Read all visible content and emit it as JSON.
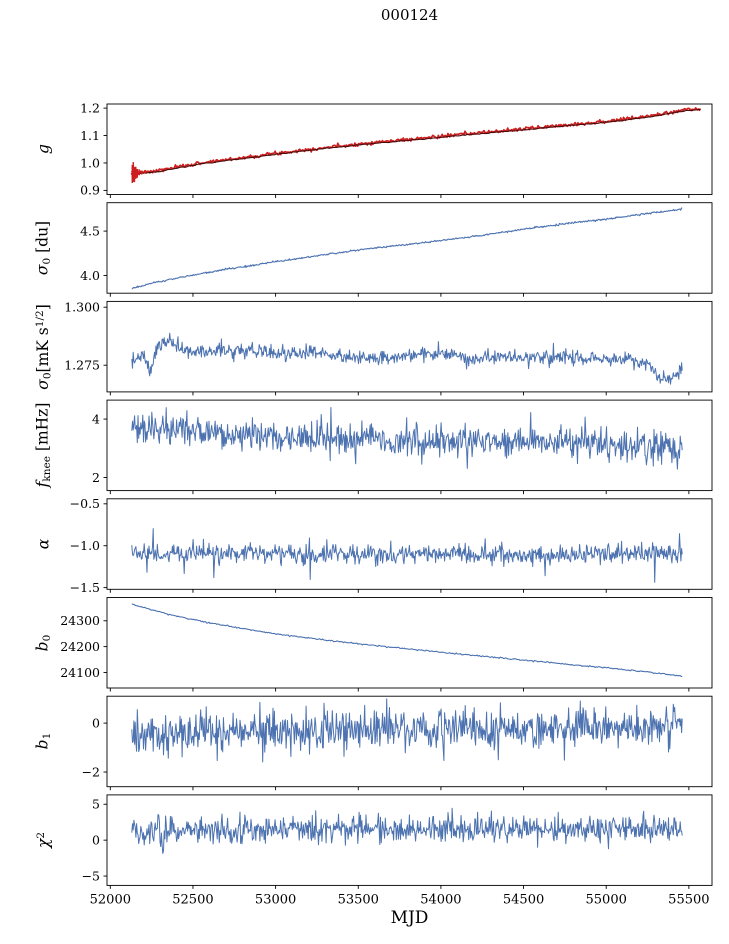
{
  "title": "000124",
  "chart_data": {
    "type": "line",
    "title": "000124",
    "xlabel": "MJD",
    "legend": "none",
    "grid": false,
    "x_axis": {
      "range": [
        51980,
        55640
      ],
      "data_range": [
        52130,
        55460
      ],
      "ticks": [
        52000,
        52500,
        53000,
        53500,
        54000,
        54500,
        55000,
        55500
      ],
      "tick_labels": [
        "52000",
        "52500",
        "53000",
        "53500",
        "54000",
        "54500",
        "55000",
        "55500"
      ]
    },
    "colors": {
      "blue": "#4c72b0",
      "red": "#cc1f1f",
      "dark": "#4a0c0c",
      "axis": "#000000",
      "background": "#ffffff"
    },
    "panels": [
      {
        "id": "g",
        "ylabel_text": "g",
        "ylabel_tokens": [
          {
            "t": "g",
            "i": 1
          }
        ],
        "ylim": [
          0.885,
          1.215
        ],
        "yticks": [
          0.9,
          1.0,
          1.1,
          1.2
        ],
        "ytick_labels": [
          "0.9",
          "1.0",
          "1.1",
          "1.2"
        ],
        "series": [
          {
            "name": "gain",
            "color": "red",
            "width": 1.7,
            "n": 600,
            "seed": 7,
            "noise_sigma": 0.0032,
            "x_end": 55570,
            "keypoints": [
              [
                52130,
                0.962
              ],
              [
                52250,
                0.968
              ],
              [
                52400,
                0.984
              ],
              [
                52550,
                1.0
              ],
              [
                52700,
                1.012
              ],
              [
                52850,
                1.023
              ],
              [
                53000,
                1.035
              ],
              [
                53150,
                1.046
              ],
              [
                53300,
                1.056
              ],
              [
                53450,
                1.066
              ],
              [
                53600,
                1.075
              ],
              [
                53750,
                1.083
              ],
              [
                53900,
                1.091
              ],
              [
                54050,
                1.1
              ],
              [
                54200,
                1.108
              ],
              [
                54350,
                1.116
              ],
              [
                54500,
                1.124
              ],
              [
                54650,
                1.133
              ],
              [
                54800,
                1.141
              ],
              [
                54950,
                1.149
              ],
              [
                55080,
                1.157
              ],
              [
                55200,
                1.166
              ],
              [
                55300,
                1.175
              ],
              [
                55400,
                1.186
              ],
              [
                55480,
                1.194
              ],
              [
                55570,
                1.198
              ]
            ]
          },
          {
            "name": "gain-smooth",
            "color": "dark",
            "width": 1.1,
            "n": 240,
            "seed": 8,
            "noise_sigma": 0.0008,
            "offset": -0.0035,
            "x_end": 55570,
            "keypoints": [
              [
                52130,
                0.962
              ],
              [
                52250,
                0.968
              ],
              [
                52400,
                0.984
              ],
              [
                52550,
                1.0
              ],
              [
                52700,
                1.012
              ],
              [
                52850,
                1.023
              ],
              [
                53000,
                1.035
              ],
              [
                53150,
                1.046
              ],
              [
                53300,
                1.056
              ],
              [
                53450,
                1.066
              ],
              [
                53600,
                1.075
              ],
              [
                53750,
                1.083
              ],
              [
                53900,
                1.091
              ],
              [
                54050,
                1.1
              ],
              [
                54200,
                1.108
              ],
              [
                54350,
                1.116
              ],
              [
                54500,
                1.124
              ],
              [
                54650,
                1.133
              ],
              [
                54800,
                1.141
              ],
              [
                54950,
                1.149
              ],
              [
                55080,
                1.157
              ],
              [
                55200,
                1.166
              ],
              [
                55300,
                1.175
              ],
              [
                55400,
                1.186
              ],
              [
                55480,
                1.194
              ],
              [
                55570,
                1.198
              ]
            ]
          }
        ],
        "errorbars": {
          "color": "red",
          "points": [
            [
              52133,
              0.96,
              0.033
            ],
            [
              52139,
              0.967,
              0.036
            ],
            [
              52146,
              0.958,
              0.028
            ],
            [
              52154,
              0.964,
              0.022
            ],
            [
              52163,
              0.962,
              0.016
            ],
            [
              52174,
              0.966,
              0.011
            ],
            [
              52190,
              0.965,
              0.007
            ],
            [
              52210,
              0.967,
              0.005
            ]
          ]
        }
      },
      {
        "id": "sigma0-du",
        "ylabel_text": "sigma_0 [du]",
        "ylabel_tokens": [
          {
            "t": "σ",
            "i": 1
          },
          {
            "t": "0",
            "sub": 1
          },
          {
            "t": " [du]"
          }
        ],
        "ylim": [
          3.8,
          4.82
        ],
        "yticks": [
          4.0,
          4.5
        ],
        "ytick_labels": [
          "4.0",
          "4.5"
        ],
        "series": [
          {
            "name": "sigma0-du",
            "color": "blue",
            "width": 1.1,
            "n": 700,
            "seed": 21,
            "noise_sigma": 0.005,
            "keypoints": [
              [
                52130,
                3.855
              ],
              [
                52250,
                3.91
              ],
              [
                52400,
                3.97
              ],
              [
                52550,
                4.02
              ],
              [
                52700,
                4.07
              ],
              [
                52850,
                4.11
              ],
              [
                53000,
                4.155
              ],
              [
                53150,
                4.195
              ],
              [
                53300,
                4.235
              ],
              [
                53450,
                4.275
              ],
              [
                53600,
                4.31
              ],
              [
                53750,
                4.34
              ],
              [
                53900,
                4.37
              ],
              [
                54050,
                4.405
              ],
              [
                54200,
                4.44
              ],
              [
                54350,
                4.48
              ],
              [
                54500,
                4.52
              ],
              [
                54650,
                4.56
              ],
              [
                54800,
                4.595
              ],
              [
                54950,
                4.625
              ],
              [
                55100,
                4.66
              ],
              [
                55250,
                4.7
              ],
              [
                55350,
                4.72
              ],
              [
                55460,
                4.75
              ]
            ]
          }
        ]
      },
      {
        "id": "sigma0-mk",
        "ylabel_text": "sigma_0 [mK s^1/2]",
        "ylabel_tokens": [
          {
            "t": "σ",
            "i": 1
          },
          {
            "t": "0",
            "sub": 1
          },
          {
            "t": "[mK s"
          },
          {
            "t": "1/2",
            "sup": 1
          },
          {
            "t": "]"
          }
        ],
        "ylim": [
          1.2635,
          1.3025
        ],
        "yticks": [
          1.275,
          1.3
        ],
        "ytick_labels": [
          "1.275",
          "1.300"
        ],
        "series": [
          {
            "name": "sigma0-mk",
            "color": "blue",
            "width": 1.0,
            "n": 800,
            "seed": 31,
            "noise_sigma": 0.0016,
            "spike_prob": 0.004,
            "spike_scale": 0.004,
            "keypoints": [
              [
                52130,
                1.277
              ],
              [
                52200,
                1.279
              ],
              [
                52240,
                1.272
              ],
              [
                52290,
                1.2835
              ],
              [
                52360,
                1.2855
              ],
              [
                52450,
                1.2805
              ],
              [
                52600,
                1.281
              ],
              [
                52800,
                1.282
              ],
              [
                53000,
                1.28
              ],
              [
                53200,
                1.281
              ],
              [
                53400,
                1.279
              ],
              [
                53600,
                1.278
              ],
              [
                53800,
                1.279
              ],
              [
                54000,
                1.28
              ],
              [
                54200,
                1.278
              ],
              [
                54400,
                1.279
              ],
              [
                54600,
                1.278
              ],
              [
                54800,
                1.2785
              ],
              [
                55000,
                1.277
              ],
              [
                55120,
                1.278
              ],
              [
                55250,
                1.276
              ],
              [
                55330,
                1.2685
              ],
              [
                55400,
                1.27
              ],
              [
                55460,
                1.273
              ]
            ]
          }
        ]
      },
      {
        "id": "fknee",
        "ylabel_text": "f_knee [mHz]",
        "ylabel_tokens": [
          {
            "t": "f",
            "i": 1
          },
          {
            "t": "knee",
            "sub": 1
          },
          {
            "t": " [mHz]"
          }
        ],
        "ylim": [
          1.55,
          4.65
        ],
        "yticks": [
          2,
          4
        ],
        "ytick_labels": [
          "2",
          "4"
        ],
        "series": [
          {
            "name": "fknee",
            "color": "blue",
            "width": 1.0,
            "n": 800,
            "seed": 41,
            "noise_sigma": 0.27,
            "spike_prob": 0.015,
            "spike_scale": 0.7,
            "keypoints": [
              [
                52130,
                3.75
              ],
              [
                52250,
                3.62
              ],
              [
                52400,
                3.66
              ],
              [
                52550,
                3.52
              ],
              [
                52700,
                3.46
              ],
              [
                52900,
                3.42
              ],
              [
                53100,
                3.38
              ],
              [
                53300,
                3.34
              ],
              [
                53600,
                3.31
              ],
              [
                54000,
                3.28
              ],
              [
                54400,
                3.22
              ],
              [
                54800,
                3.16
              ],
              [
                55100,
                3.1
              ],
              [
                55300,
                3.05
              ],
              [
                55460,
                3.0
              ]
            ]
          }
        ]
      },
      {
        "id": "alpha",
        "ylabel_text": "alpha",
        "ylabel_tokens": [
          {
            "t": "α",
            "i": 1
          }
        ],
        "ylim": [
          -1.52,
          -0.44
        ],
        "yticks": [
          -1.5,
          -1.0,
          -0.5
        ],
        "ytick_labels": [
          "−1.5",
          "−1.0",
          "−0.5"
        ],
        "series": [
          {
            "name": "alpha",
            "color": "blue",
            "width": 1.0,
            "n": 800,
            "seed": 51,
            "noise_sigma": 0.055,
            "spike_prob": 0.01,
            "spike_scale": 0.22,
            "keypoints": [
              [
                52130,
                -1.09
              ],
              [
                53500,
                -1.105
              ],
              [
                55460,
                -1.1
              ]
            ]
          }
        ]
      },
      {
        "id": "b0",
        "ylabel_text": "b_0",
        "ylabel_tokens": [
          {
            "t": "b",
            "i": 1
          },
          {
            "t": "0",
            "sub": 1
          }
        ],
        "ylim": [
          24040,
          24390
        ],
        "yticks": [
          24100,
          24200,
          24300
        ],
        "ytick_labels": [
          "24100",
          "24200",
          "24300"
        ],
        "series": [
          {
            "name": "b0",
            "color": "blue",
            "width": 1.1,
            "n": 500,
            "seed": 61,
            "noise_sigma": 1.3,
            "keypoints": [
              [
                52130,
                24365
              ],
              [
                52250,
                24342
              ],
              [
                52400,
                24318
              ],
              [
                52600,
                24292
              ],
              [
                52800,
                24270
              ],
              [
                53000,
                24250
              ],
              [
                53200,
                24233
              ],
              [
                53400,
                24218
              ],
              [
                53600,
                24204
              ],
              [
                53800,
                24191
              ],
              [
                54000,
                24178
              ],
              [
                54200,
                24166
              ],
              [
                54400,
                24154
              ],
              [
                54600,
                24142
              ],
              [
                54800,
                24130
              ],
              [
                55000,
                24118
              ],
              [
                55200,
                24105
              ],
              [
                55350,
                24094
              ],
              [
                55460,
                24086
              ]
            ]
          }
        ]
      },
      {
        "id": "b1",
        "ylabel_text": "b_1",
        "ylabel_tokens": [
          {
            "t": "b",
            "i": 1
          },
          {
            "t": "1",
            "sub": 1
          }
        ],
        "ylim": [
          -2.6,
          1.1
        ],
        "yticks": [
          -2,
          0
        ],
        "ytick_labels": [
          "−2",
          "0"
        ],
        "series": [
          {
            "name": "b1",
            "color": "blue",
            "width": 1.0,
            "n": 800,
            "seed": 71,
            "noise_sigma": 0.42,
            "spike_prob": 0.012,
            "spike_scale": 1.1,
            "keypoints": [
              [
                52130,
                -0.42
              ],
              [
                52600,
                -0.38
              ],
              [
                53500,
                -0.3
              ],
              [
                54500,
                -0.22
              ],
              [
                55460,
                -0.18
              ]
            ]
          }
        ]
      },
      {
        "id": "chi2",
        "ylabel_text": "chi^2",
        "ylabel_tokens": [
          {
            "t": "χ",
            "i": 1
          },
          {
            "t": "2",
            "sup": 1
          }
        ],
        "ylim": [
          -6.3,
          6.3
        ],
        "yticks": [
          -5,
          0,
          5
        ],
        "ytick_labels": [
          "−5",
          "0",
          "5"
        ],
        "series": [
          {
            "name": "chi2",
            "color": "blue",
            "width": 1.0,
            "n": 800,
            "seed": 81,
            "noise_sigma": 0.95,
            "spike_prob": 0.012,
            "spike_scale": 1.8,
            "keypoints": [
              [
                52130,
                1.25
              ],
              [
                53000,
                1.45
              ],
              [
                54000,
                1.5
              ],
              [
                55460,
                1.7
              ]
            ]
          }
        ]
      }
    ]
  }
}
